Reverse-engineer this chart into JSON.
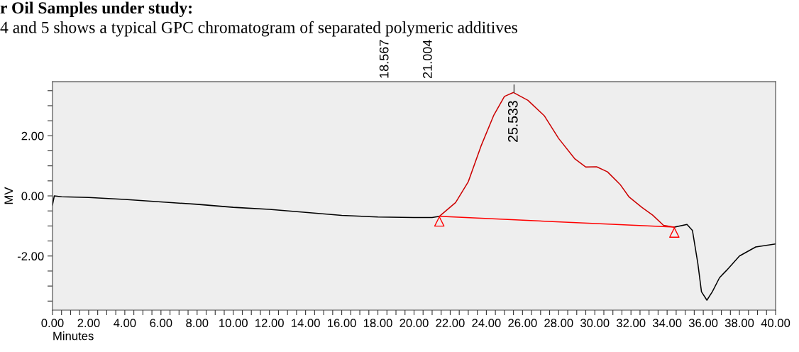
{
  "chart_data": {
    "type": "line",
    "title": "r Oil Samples under study:",
    "subtitle": "4 and 5 shows a typical GPC chromatogram of separated polymeric additives",
    "xlabel": "Minutes",
    "ylabel": "MV",
    "xlim": [
      0,
      40
    ],
    "ylim": [
      -3.8,
      3.8
    ],
    "xticks": [
      {
        "value": 0,
        "label": "0.00"
      },
      {
        "value": 0.5,
        "label": null
      },
      {
        "value": 1,
        "label": null
      },
      {
        "value": 1.5,
        "label": null
      },
      {
        "value": 2,
        "label": "2.00"
      },
      {
        "value": 2.5,
        "label": null
      },
      {
        "value": 3,
        "label": null
      },
      {
        "value": 3.5,
        "label": null
      },
      {
        "value": 4,
        "label": "4.00"
      },
      {
        "value": 4.5,
        "label": null
      },
      {
        "value": 5,
        "label": null
      },
      {
        "value": 5.5,
        "label": null
      },
      {
        "value": 6,
        "label": "6.00"
      },
      {
        "value": 6.5,
        "label": null
      },
      {
        "value": 7,
        "label": null
      },
      {
        "value": 7.5,
        "label": null
      },
      {
        "value": 8,
        "label": "8.00"
      },
      {
        "value": 8.5,
        "label": null
      },
      {
        "value": 9,
        "label": null
      },
      {
        "value": 9.5,
        "label": null
      },
      {
        "value": 10,
        "label": "10.00"
      },
      {
        "value": 10.5,
        "label": null
      },
      {
        "value": 11,
        "label": null
      },
      {
        "value": 11.5,
        "label": null
      },
      {
        "value": 12,
        "label": "12.00"
      },
      {
        "value": 12.5,
        "label": null
      },
      {
        "value": 13,
        "label": null
      },
      {
        "value": 13.5,
        "label": null
      },
      {
        "value": 14,
        "label": "14.00"
      },
      {
        "value": 14.5,
        "label": null
      },
      {
        "value": 15,
        "label": null
      },
      {
        "value": 15.5,
        "label": null
      },
      {
        "value": 16,
        "label": "16.00"
      },
      {
        "value": 16.5,
        "label": null
      },
      {
        "value": 17,
        "label": null
      },
      {
        "value": 17.5,
        "label": null
      },
      {
        "value": 18,
        "label": "18.00"
      },
      {
        "value": 18.5,
        "label": null
      },
      {
        "value": 19,
        "label": null
      },
      {
        "value": 19.5,
        "label": null
      },
      {
        "value": 20,
        "label": "20.00"
      },
      {
        "value": 20.5,
        "label": null
      },
      {
        "value": 21,
        "label": null
      },
      {
        "value": 21.5,
        "label": null
      },
      {
        "value": 22,
        "label": "22.00"
      },
      {
        "value": 22.5,
        "label": null
      },
      {
        "value": 23,
        "label": null
      },
      {
        "value": 23.5,
        "label": null
      },
      {
        "value": 24,
        "label": "24.00"
      },
      {
        "value": 24.5,
        "label": null
      },
      {
        "value": 25,
        "label": null
      },
      {
        "value": 25.5,
        "label": null
      },
      {
        "value": 26,
        "label": "26.00"
      },
      {
        "value": 26.5,
        "label": null
      },
      {
        "value": 27,
        "label": null
      },
      {
        "value": 27.5,
        "label": null
      },
      {
        "value": 28,
        "label": "28.00"
      },
      {
        "value": 28.5,
        "label": null
      },
      {
        "value": 29,
        "label": null
      },
      {
        "value": 29.5,
        "label": null
      },
      {
        "value": 30,
        "label": "30.00"
      },
      {
        "value": 30.5,
        "label": null
      },
      {
        "value": 31,
        "label": null
      },
      {
        "value": 31.5,
        "label": null
      },
      {
        "value": 32,
        "label": "32.00"
      },
      {
        "value": 32.5,
        "label": null
      },
      {
        "value": 33,
        "label": null
      },
      {
        "value": 33.5,
        "label": null
      },
      {
        "value": 34,
        "label": "34.00"
      },
      {
        "value": 34.5,
        "label": null
      },
      {
        "value": 35,
        "label": null
      },
      {
        "value": 35.5,
        "label": null
      },
      {
        "value": 36,
        "label": "36.00"
      },
      {
        "value": 36.5,
        "label": null
      },
      {
        "value": 37,
        "label": null
      },
      {
        "value": 37.5,
        "label": null
      },
      {
        "value": 38,
        "label": "38.00"
      },
      {
        "value": 38.5,
        "label": null
      },
      {
        "value": 39,
        "label": null
      },
      {
        "value": 39.5,
        "label": null
      },
      {
        "value": 40,
        "label": "40.00"
      }
    ],
    "yticks": [
      {
        "value": -3.5,
        "label": null
      },
      {
        "value": -3,
        "label": null
      },
      {
        "value": -2.5,
        "label": null
      },
      {
        "value": -2,
        "label": "-2.00"
      },
      {
        "value": -1.5,
        "label": null
      },
      {
        "value": -1,
        "label": null
      },
      {
        "value": -0.5,
        "label": null
      },
      {
        "value": 0,
        "label": "0.00"
      },
      {
        "value": 0.5,
        "label": null
      },
      {
        "value": 1,
        "label": null
      },
      {
        "value": 1.5,
        "label": null
      },
      {
        "value": 2,
        "label": "2.00"
      },
      {
        "value": 2.5,
        "label": null
      },
      {
        "value": 3,
        "label": null
      },
      {
        "value": 3.5,
        "label": null
      }
    ],
    "grid": false,
    "legend": false,
    "marker": "none",
    "line_style": "solid",
    "series": [
      {
        "color": "#000000",
        "x": [
          0,
          0.1,
          0.5,
          2,
          4,
          6,
          8,
          10,
          12,
          14,
          16,
          18,
          20,
          21,
          21.4
        ],
        "values": [
          -0.3,
          0.0,
          -0.03,
          -0.05,
          -0.12,
          -0.2,
          -0.28,
          -0.38,
          -0.45,
          -0.55,
          -0.65,
          -0.7,
          -0.72,
          -0.72,
          -0.68
        ]
      },
      {
        "color": "#cc0000",
        "x": [
          21.4,
          22.3,
          23.0,
          23.7,
          24.4,
          25.0,
          25.5,
          26.3,
          27.2,
          28.0,
          28.9,
          29.5,
          30.1,
          30.7,
          31.4,
          31.9,
          32.6,
          33.2,
          33.8,
          34.4
        ],
        "values": [
          -0.68,
          -0.22,
          0.47,
          1.65,
          2.67,
          3.31,
          3.44,
          3.18,
          2.67,
          1.91,
          1.23,
          0.96,
          0.97,
          0.8,
          0.38,
          -0.04,
          -0.38,
          -0.64,
          -0.98,
          -1.04
        ]
      },
      {
        "color": "#000000",
        "x": [
          34.4,
          35.1,
          35.4,
          35.7,
          35.9,
          36.2,
          36.5,
          36.9,
          37.3,
          38.0,
          38.9,
          40.0
        ],
        "values": [
          -1.04,
          -0.95,
          -1.15,
          -2.25,
          -3.19,
          -3.47,
          -3.19,
          -2.72,
          -2.47,
          -2.0,
          -1.7,
          -1.6
        ]
      },
      {
        "color": "#ff0000",
        "x": [
          21.4,
          34.4
        ],
        "values": [
          -0.68,
          -1.04
        ]
      },
      {
        "type": "scatter",
        "marker": "triangle",
        "color": "#ff0000",
        "x": [
          21.4,
          34.4
        ],
        "values": [
          -0.85,
          -1.22
        ]
      }
    ],
    "annotations": [
      {
        "text": "25.533",
        "x": 25.533,
        "y": 3.44
      },
      "18.567",
      "21.004"
    ]
  }
}
